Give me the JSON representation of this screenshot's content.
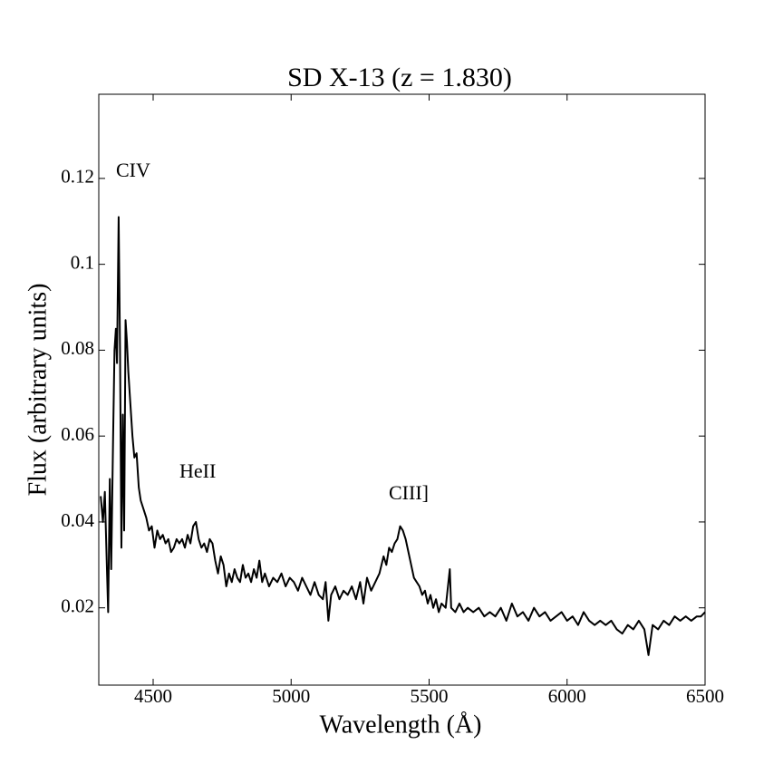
{
  "chart_data": {
    "type": "line",
    "title": "SD X-13 (z = 1.830)",
    "x_label": "Wavelength (Å)",
    "y_label": "Flux (arbitrary units)",
    "annotations": [
      "CIV",
      "HeII",
      "CIII]"
    ],
    "color": "#000000",
    "grid": false,
    "xlim": [
      4303,
      6500
    ],
    "ylim": [
      0.002,
      0.1396
    ],
    "xticks": [
      4500,
      5000,
      5500,
      6000,
      6500
    ],
    "yticks": [
      0.02,
      0.04,
      0.06,
      0.08,
      0.1,
      0.12
    ],
    "x": [
      4310,
      4318,
      4325,
      4330,
      4337,
      4343,
      4348,
      4355,
      4360,
      4365,
      4369,
      4375,
      4380,
      4385,
      4390,
      4395,
      4400,
      4405,
      4410,
      4418,
      4425,
      4432,
      4440,
      4448,
      4455,
      4465,
      4475,
      4485,
      4495,
      4505,
      4515,
      4525,
      4535,
      4545,
      4555,
      4565,
      4575,
      4585,
      4595,
      4605,
      4615,
      4625,
      4635,
      4645,
      4655,
      4665,
      4675,
      4685,
      4695,
      4705,
      4715,
      4725,
      4735,
      4745,
      4755,
      4765,
      4775,
      4785,
      4795,
      4805,
      4815,
      4825,
      4835,
      4845,
      4855,
      4865,
      4875,
      4885,
      4895,
      4905,
      4920,
      4935,
      4950,
      4965,
      4980,
      4995,
      5010,
      5025,
      5040,
      5055,
      5070,
      5085,
      5100,
      5115,
      5125,
      5135,
      5145,
      5160,
      5175,
      5190,
      5205,
      5220,
      5235,
      5250,
      5262,
      5275,
      5290,
      5305,
      5320,
      5335,
      5345,
      5355,
      5365,
      5375,
      5385,
      5395,
      5405,
      5415,
      5425,
      5435,
      5445,
      5455,
      5465,
      5475,
      5485,
      5495,
      5505,
      5515,
      5525,
      5535,
      5545,
      5560,
      5575,
      5580,
      5595,
      5610,
      5625,
      5640,
      5660,
      5680,
      5700,
      5720,
      5740,
      5760,
      5780,
      5800,
      5820,
      5840,
      5860,
      5880,
      5900,
      5920,
      5940,
      5960,
      5980,
      6000,
      6020,
      6040,
      6060,
      6080,
      6100,
      6120,
      6140,
      6160,
      6180,
      6200,
      6220,
      6240,
      6260,
      6280,
      6295,
      6310,
      6330,
      6350,
      6370,
      6390,
      6410,
      6430,
      6450,
      6470,
      6485,
      6500
    ],
    "series": [
      {
        "name": "flux",
        "color": "#000000",
        "values": [
          0.046,
          0.04,
          0.047,
          0.035,
          0.019,
          0.05,
          0.029,
          0.06,
          0.08,
          0.085,
          0.077,
          0.111,
          0.08,
          0.034,
          0.065,
          0.038,
          0.087,
          0.082,
          0.075,
          0.067,
          0.06,
          0.055,
          0.056,
          0.048,
          0.045,
          0.043,
          0.041,
          0.038,
          0.039,
          0.034,
          0.038,
          0.036,
          0.037,
          0.035,
          0.036,
          0.033,
          0.034,
          0.036,
          0.035,
          0.036,
          0.034,
          0.037,
          0.035,
          0.039,
          0.04,
          0.036,
          0.034,
          0.035,
          0.033,
          0.036,
          0.035,
          0.031,
          0.028,
          0.032,
          0.03,
          0.025,
          0.028,
          0.026,
          0.029,
          0.027,
          0.026,
          0.03,
          0.027,
          0.028,
          0.026,
          0.029,
          0.027,
          0.031,
          0.026,
          0.028,
          0.025,
          0.027,
          0.026,
          0.028,
          0.025,
          0.027,
          0.026,
          0.024,
          0.027,
          0.025,
          0.023,
          0.026,
          0.023,
          0.022,
          0.026,
          0.017,
          0.023,
          0.025,
          0.022,
          0.024,
          0.023,
          0.025,
          0.022,
          0.026,
          0.021,
          0.027,
          0.024,
          0.026,
          0.028,
          0.032,
          0.03,
          0.034,
          0.033,
          0.035,
          0.036,
          0.039,
          0.038,
          0.036,
          0.033,
          0.03,
          0.027,
          0.026,
          0.025,
          0.023,
          0.024,
          0.021,
          0.023,
          0.02,
          0.022,
          0.019,
          0.021,
          0.02,
          0.029,
          0.02,
          0.019,
          0.021,
          0.019,
          0.02,
          0.019,
          0.02,
          0.018,
          0.019,
          0.018,
          0.02,
          0.017,
          0.021,
          0.018,
          0.019,
          0.017,
          0.02,
          0.018,
          0.019,
          0.017,
          0.018,
          0.019,
          0.017,
          0.018,
          0.016,
          0.019,
          0.017,
          0.016,
          0.017,
          0.016,
          0.017,
          0.015,
          0.014,
          0.016,
          0.015,
          0.017,
          0.015,
          0.009,
          0.016,
          0.015,
          0.017,
          0.016,
          0.018,
          0.017,
          0.018,
          0.017,
          0.018,
          0.018,
          0.019
        ]
      }
    ]
  }
}
